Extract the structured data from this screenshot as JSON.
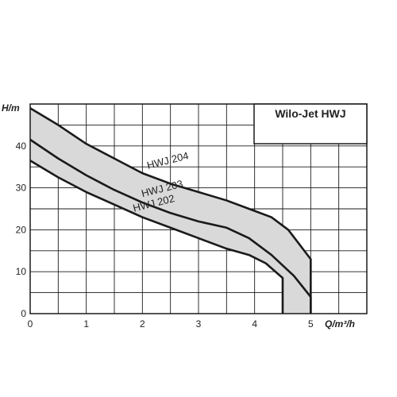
{
  "chart_data": {
    "type": "line",
    "title": "Wilo-Jet HWJ",
    "xlabel": "Q/m³/h",
    "ylabel": "H/m",
    "xlim": [
      0,
      6
    ],
    "ylim": [
      0,
      50
    ],
    "x_ticks": [
      0,
      1,
      2,
      3,
      4,
      5
    ],
    "y_ticks": [
      0,
      10,
      20,
      30,
      40
    ],
    "grid": true,
    "band_fill": "#d9d9d9",
    "line_color": "#1a1a1a",
    "series": [
      {
        "name": "HWJ 204",
        "points": [
          [
            0,
            49
          ],
          [
            0.5,
            45
          ],
          [
            1,
            40.5
          ],
          [
            1.5,
            37
          ],
          [
            2,
            33.5
          ],
          [
            2.5,
            31
          ],
          [
            3,
            29
          ],
          [
            3.5,
            27
          ],
          [
            4,
            24.5
          ],
          [
            4.3,
            23
          ],
          [
            4.6,
            20
          ],
          [
            5,
            13
          ],
          [
            5,
            0
          ]
        ]
      },
      {
        "name": "HWJ 203",
        "points": [
          [
            0,
            41.5
          ],
          [
            0.5,
            37
          ],
          [
            1,
            33
          ],
          [
            1.5,
            29.5
          ],
          [
            2,
            26.5
          ],
          [
            2.5,
            24
          ],
          [
            3,
            22
          ],
          [
            3.5,
            20.5
          ],
          [
            3.9,
            18
          ],
          [
            4.3,
            14
          ],
          [
            4.7,
            9
          ],
          [
            5,
            4
          ],
          [
            5,
            0
          ]
        ]
      },
      {
        "name": "HWJ 202",
        "points": [
          [
            0,
            36.5
          ],
          [
            0.5,
            32.5
          ],
          [
            1,
            29
          ],
          [
            1.5,
            26
          ],
          [
            2,
            23
          ],
          [
            2.5,
            20.5
          ],
          [
            3,
            18
          ],
          [
            3.5,
            15.5
          ],
          [
            3.9,
            14
          ],
          [
            4.2,
            12
          ],
          [
            4.5,
            8.5
          ],
          [
            4.5,
            0
          ]
        ]
      }
    ]
  }
}
